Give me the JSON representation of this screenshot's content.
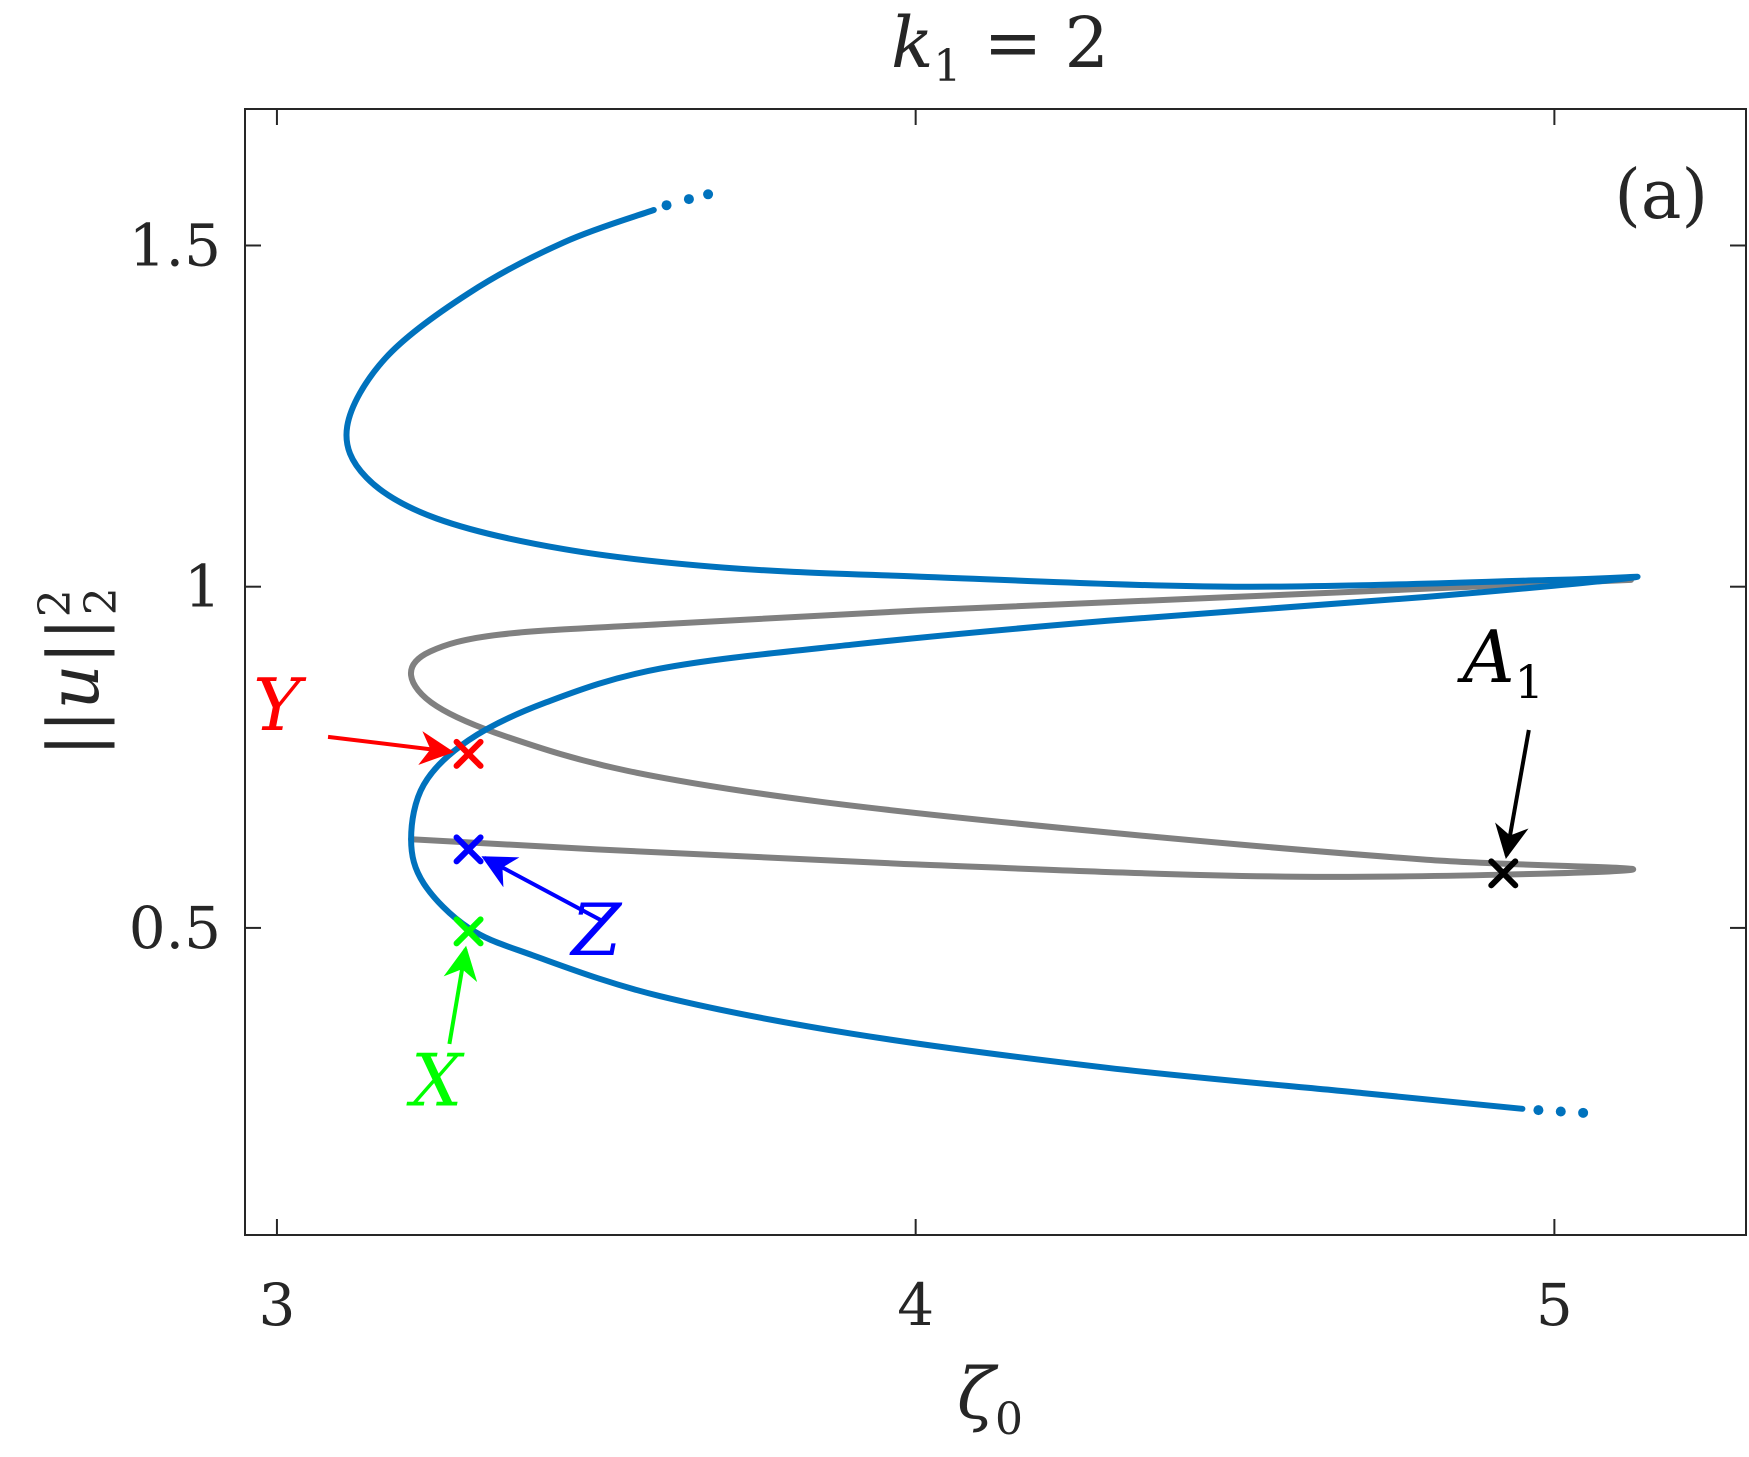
{
  "chart_data": {
    "type": "line",
    "title": {
      "main": "k",
      "sub": "1",
      "rest": " = 2"
    },
    "xlabel": {
      "main": "ζ",
      "sub": "0"
    },
    "ylabel": {
      "text": "||u||",
      "sup": "2",
      "sub": "2"
    },
    "xlim": [
      2.95,
      5.3
    ],
    "ylim": [
      0.05,
      1.7
    ],
    "xticks": [
      3,
      4,
      5
    ],
    "xtick_labels": [
      "3",
      "4",
      "5"
    ],
    "yticks": [
      0.5,
      1,
      1.5
    ],
    "ytick_labels": [
      "0.5",
      "1",
      "1.5"
    ],
    "grid": false,
    "panel_label": "(a)",
    "colors": {
      "blue": "#0072bd",
      "gray": "#808080",
      "red": "#ff0000",
      "navy": "#0000ff",
      "green": "#00ff00",
      "black": "#000000"
    },
    "series": [
      {
        "color": "#0072bd",
        "points": [
          [
            3.59,
            1.552
          ],
          [
            3.45,
            1.505
          ],
          [
            3.3,
            1.43
          ],
          [
            3.17,
            1.335
          ],
          [
            3.11,
            1.235
          ],
          [
            3.14,
            1.16
          ],
          [
            3.25,
            1.1
          ],
          [
            3.45,
            1.055
          ],
          [
            3.7,
            1.028
          ],
          [
            4.0,
            1.015
          ],
          [
            4.5,
            1.0
          ],
          [
            5.0,
            1.01
          ],
          [
            5.12,
            1.013
          ],
          [
            4.8,
            0.985
          ],
          [
            4.3,
            0.95
          ],
          [
            3.9,
            0.915
          ],
          [
            3.6,
            0.88
          ],
          [
            3.42,
            0.83
          ],
          [
            3.3,
            0.775
          ],
          [
            3.23,
            0.71
          ],
          [
            3.21,
            0.63
          ],
          [
            3.23,
            0.565
          ],
          [
            3.3,
            0.5
          ],
          [
            3.4,
            0.46
          ],
          [
            3.6,
            0.4
          ],
          [
            3.9,
            0.345
          ],
          [
            4.3,
            0.295
          ],
          [
            4.7,
            0.258
          ],
          [
            4.95,
            0.235
          ]
        ],
        "dots_top": [
          [
            3.61,
            1.559
          ],
          [
            3.645,
            1.568
          ],
          [
            3.675,
            1.575
          ]
        ],
        "dots_bottom": [
          [
            4.975,
            0.233
          ],
          [
            5.01,
            0.231
          ],
          [
            5.045,
            0.229
          ]
        ]
      },
      {
        "color": "#808080",
        "points": [
          [
            5.12,
            1.01
          ],
          [
            4.5,
            0.985
          ],
          [
            4.0,
            0.965
          ],
          [
            3.6,
            0.945
          ],
          [
            3.35,
            0.93
          ],
          [
            3.24,
            0.905
          ],
          [
            3.21,
            0.87
          ],
          [
            3.25,
            0.825
          ],
          [
            3.36,
            0.78
          ],
          [
            3.55,
            0.73
          ],
          [
            3.85,
            0.685
          ],
          [
            4.3,
            0.64
          ],
          [
            4.8,
            0.6
          ],
          [
            5.12,
            0.585
          ],
          [
            4.6,
            0.575
          ],
          [
            4.0,
            0.593
          ],
          [
            3.5,
            0.615
          ],
          [
            3.21,
            0.63
          ]
        ]
      }
    ],
    "markers": [
      {
        "label": "Y",
        "color": "#ff0000",
        "x": 3.3,
        "y": 0.755,
        "label_x": 3.0,
        "label_y": 0.79,
        "arrow_from": [
          3.08,
          0.78
        ]
      },
      {
        "label": "Z",
        "color": "#0000ff",
        "x": 3.3,
        "y": 0.615,
        "label_x": 3.5,
        "label_y": 0.46,
        "arrow_from": [
          3.51,
          0.51
        ]
      },
      {
        "label": "X",
        "color": "#00ff00",
        "x": 3.3,
        "y": 0.495,
        "label_x": 3.25,
        "label_y": 0.24,
        "arrow_from": [
          3.27,
          0.33
        ]
      },
      {
        "label": "A",
        "label_sub": "1",
        "color": "#000000",
        "x": 4.92,
        "y": 0.58,
        "label_x": 4.92,
        "label_y": 0.86,
        "arrow_from": [
          4.96,
          0.79
        ]
      }
    ]
  }
}
